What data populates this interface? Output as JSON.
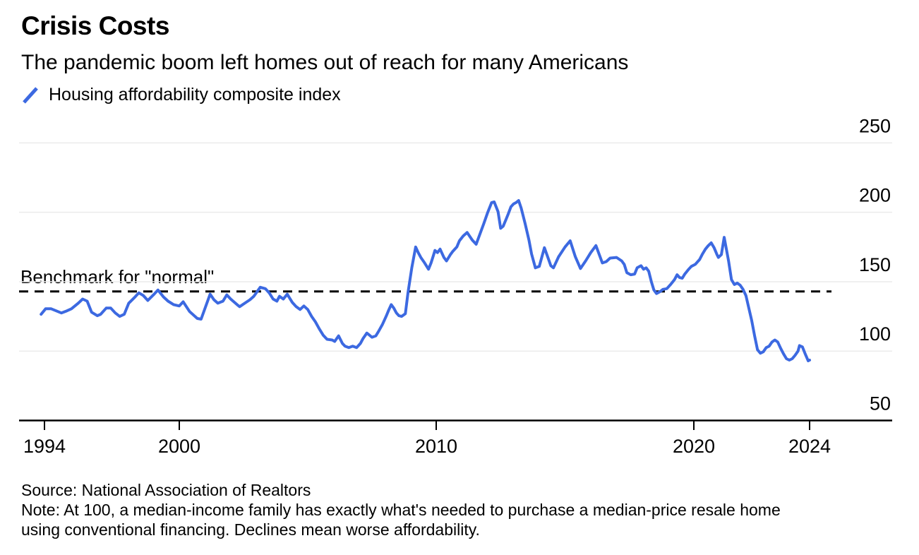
{
  "header": {
    "title": "Crisis Costs",
    "subtitle": "The pandemic boom left homes out of reach for many Americans"
  },
  "legend": {
    "label": "Housing affordability composite index"
  },
  "annotation": {
    "benchmark_label": "Benchmark for \"normal\""
  },
  "footer": {
    "source": "Source: National Association of Realtors",
    "note_line1": "Note: At 100, a median-income family has exactly what's needed to purchase a median-price resale home",
    "note_line2": "using conventional financing. Declines mean worse affordability."
  },
  "colors": {
    "line": "#3c69e1",
    "benchmark_line": "#000000",
    "grid": "#ebebeb",
    "axis": "#000000",
    "text": "#000000"
  },
  "chart_data": {
    "type": "line",
    "title": "Crisis Costs",
    "subtitle": "The pandemic boom left homes out of reach for many Americans",
    "xlabel": "",
    "ylabel": "",
    "x_ticks": [
      1994,
      2000,
      2010,
      2020,
      2024
    ],
    "y_ticks": [
      250,
      200,
      150,
      100,
      50
    ],
    "ylim": [
      50,
      268
    ],
    "xlim": [
      1993.8,
      2024.9
    ],
    "grid": "horizontal",
    "legend_position": "top-left",
    "benchmark": {
      "label": "Benchmark for \"normal\"",
      "value": 143,
      "style": "dashed"
    },
    "series": [
      {
        "name": "Housing affordability composite index",
        "points": [
          [
            1993.85,
            126.5
          ],
          [
            1994.05,
            130.5
          ],
          [
            1994.3,
            130.5
          ],
          [
            1994.75,
            127.5
          ],
          [
            1995.0,
            129
          ],
          [
            1995.2,
            130.5
          ],
          [
            1995.5,
            134.5
          ],
          [
            1995.7,
            137.5
          ],
          [
            1995.9,
            136
          ],
          [
            1996.1,
            128
          ],
          [
            1996.35,
            125.5
          ],
          [
            1996.5,
            126.5
          ],
          [
            1996.75,
            131
          ],
          [
            1996.95,
            131
          ],
          [
            1997.15,
            127.5
          ],
          [
            1997.35,
            125
          ],
          [
            1997.55,
            126.5
          ],
          [
            1997.75,
            134.5
          ],
          [
            1998.0,
            138.5
          ],
          [
            1998.2,
            142
          ],
          [
            1998.4,
            140
          ],
          [
            1998.6,
            136.5
          ],
          [
            1998.85,
            140.5
          ],
          [
            1999.05,
            144
          ],
          [
            1999.3,
            139
          ],
          [
            1999.5,
            136
          ],
          [
            1999.75,
            133.5
          ],
          [
            2000.0,
            132.5
          ],
          [
            2000.15,
            135.5
          ],
          [
            2000.4,
            128.5
          ],
          [
            2000.7,
            123.5
          ],
          [
            2000.85,
            123
          ],
          [
            2001.2,
            141
          ],
          [
            2001.35,
            137
          ],
          [
            2001.5,
            134.5
          ],
          [
            2001.7,
            136
          ],
          [
            2001.85,
            140.5
          ],
          [
            2002.0,
            137.5
          ],
          [
            2002.25,
            133.5
          ],
          [
            2002.35,
            132
          ],
          [
            2002.55,
            134.5
          ],
          [
            2002.75,
            137
          ],
          [
            2002.9,
            139.5
          ],
          [
            2003.15,
            146
          ],
          [
            2003.35,
            145
          ],
          [
            2003.5,
            142
          ],
          [
            2003.65,
            137.5
          ],
          [
            2003.8,
            136
          ],
          [
            2003.9,
            139.5
          ],
          [
            2004.05,
            137.5
          ],
          [
            2004.2,
            141
          ],
          [
            2004.4,
            135
          ],
          [
            2004.55,
            132
          ],
          [
            2004.7,
            130
          ],
          [
            2004.85,
            132.5
          ],
          [
            2005.0,
            130
          ],
          [
            2005.15,
            125
          ],
          [
            2005.3,
            121
          ],
          [
            2005.45,
            116
          ],
          [
            2005.6,
            111.5
          ],
          [
            2005.75,
            108.5
          ],
          [
            2005.95,
            108
          ],
          [
            2006.05,
            107
          ],
          [
            2006.2,
            111
          ],
          [
            2006.35,
            105.5
          ],
          [
            2006.45,
            103.5
          ],
          [
            2006.6,
            102.5
          ],
          [
            2006.75,
            103.5
          ],
          [
            2006.9,
            102.5
          ],
          [
            2007.05,
            105.5
          ],
          [
            2007.15,
            109
          ],
          [
            2007.3,
            113
          ],
          [
            2007.4,
            111.5
          ],
          [
            2007.5,
            110
          ],
          [
            2007.65,
            111
          ],
          [
            2007.75,
            114
          ],
          [
            2007.9,
            119
          ],
          [
            2008.05,
            125
          ],
          [
            2008.15,
            129.5
          ],
          [
            2008.25,
            133.5
          ],
          [
            2008.35,
            131
          ],
          [
            2008.45,
            127.5
          ],
          [
            2008.55,
            125.5
          ],
          [
            2008.65,
            125
          ],
          [
            2008.8,
            127
          ],
          [
            2008.9,
            142
          ],
          [
            2009.05,
            160
          ],
          [
            2009.2,
            175
          ],
          [
            2009.3,
            171
          ],
          [
            2009.4,
            167.5
          ],
          [
            2009.55,
            163.5
          ],
          [
            2009.7,
            159
          ],
          [
            2009.8,
            163.5
          ],
          [
            2009.9,
            169.5
          ],
          [
            2009.95,
            172.5
          ],
          [
            2010.05,
            171
          ],
          [
            2010.15,
            173.5
          ],
          [
            2010.3,
            167.5
          ],
          [
            2010.4,
            165
          ],
          [
            2010.55,
            169.5
          ],
          [
            2010.65,
            172
          ],
          [
            2010.8,
            175
          ],
          [
            2010.9,
            179.5
          ],
          [
            2011.05,
            183
          ],
          [
            2011.2,
            185.5
          ],
          [
            2011.4,
            180
          ],
          [
            2011.55,
            177
          ],
          [
            2011.7,
            184.5
          ],
          [
            2011.85,
            192
          ],
          [
            2012.0,
            200
          ],
          [
            2012.15,
            207
          ],
          [
            2012.25,
            207.5
          ],
          [
            2012.4,
            200.5
          ],
          [
            2012.5,
            188.5
          ],
          [
            2012.6,
            190
          ],
          [
            2012.7,
            194.5
          ],
          [
            2012.8,
            199
          ],
          [
            2012.9,
            204
          ],
          [
            2013.0,
            206
          ],
          [
            2013.1,
            207
          ],
          [
            2013.2,
            208.5
          ],
          [
            2013.3,
            203
          ],
          [
            2013.45,
            192
          ],
          [
            2013.6,
            180
          ],
          [
            2013.7,
            170
          ],
          [
            2013.85,
            160
          ],
          [
            2014.0,
            161
          ],
          [
            2014.2,
            174.5
          ],
          [
            2014.45,
            161.5
          ],
          [
            2014.55,
            160
          ],
          [
            2014.75,
            168
          ],
          [
            2015.0,
            175
          ],
          [
            2015.2,
            179.5
          ],
          [
            2015.4,
            168
          ],
          [
            2015.6,
            159.5
          ],
          [
            2015.8,
            165
          ],
          [
            2016.0,
            171
          ],
          [
            2016.2,
            176
          ],
          [
            2016.45,
            163.5
          ],
          [
            2016.6,
            164.5
          ],
          [
            2016.75,
            167
          ],
          [
            2017.0,
            167.5
          ],
          [
            2017.2,
            165
          ],
          [
            2017.3,
            162.5
          ],
          [
            2017.4,
            156.5
          ],
          [
            2017.55,
            155
          ],
          [
            2017.7,
            155.5
          ],
          [
            2017.8,
            160
          ],
          [
            2017.95,
            161.5
          ],
          [
            2018.05,
            159
          ],
          [
            2018.15,
            160
          ],
          [
            2018.25,
            157.5
          ],
          [
            2018.35,
            150
          ],
          [
            2018.45,
            144
          ],
          [
            2018.55,
            141.5
          ],
          [
            2018.7,
            143
          ],
          [
            2018.8,
            144.5
          ],
          [
            2018.95,
            145
          ],
          [
            2019.1,
            148
          ],
          [
            2019.25,
            151.5
          ],
          [
            2019.35,
            155
          ],
          [
            2019.45,
            153
          ],
          [
            2019.55,
            152.5
          ],
          [
            2019.65,
            155.5
          ],
          [
            2019.8,
            159
          ],
          [
            2019.9,
            161
          ],
          [
            2020.05,
            162.5
          ],
          [
            2020.2,
            166
          ],
          [
            2020.3,
            170
          ],
          [
            2020.4,
            173.5
          ],
          [
            2020.5,
            176
          ],
          [
            2020.6,
            178
          ],
          [
            2020.7,
            174.5
          ],
          [
            2020.8,
            169.5
          ],
          [
            2020.85,
            167.5
          ],
          [
            2020.95,
            169.5
          ],
          [
            2021.05,
            182
          ],
          [
            2021.2,
            165
          ],
          [
            2021.3,
            151.5
          ],
          [
            2021.4,
            148
          ],
          [
            2021.5,
            149
          ],
          [
            2021.6,
            147.5
          ],
          [
            2021.7,
            144.5
          ],
          [
            2021.8,
            140
          ],
          [
            2021.9,
            131
          ],
          [
            2022.0,
            122
          ],
          [
            2022.1,
            111
          ],
          [
            2022.2,
            101
          ],
          [
            2022.3,
            98.5
          ],
          [
            2022.4,
            99.5
          ],
          [
            2022.5,
            102.5
          ],
          [
            2022.6,
            103.5
          ],
          [
            2022.7,
            106.5
          ],
          [
            2022.8,
            108
          ],
          [
            2022.9,
            106.5
          ],
          [
            2023.0,
            102
          ],
          [
            2023.1,
            98
          ],
          [
            2023.2,
            94.5
          ],
          [
            2023.3,
            93.5
          ],
          [
            2023.4,
            94.5
          ],
          [
            2023.5,
            97
          ],
          [
            2023.6,
            100
          ],
          [
            2023.65,
            104
          ],
          [
            2023.75,
            103
          ],
          [
            2023.85,
            98
          ],
          [
            2023.95,
            93
          ],
          [
            2024.0,
            93.5
          ]
        ]
      }
    ]
  }
}
